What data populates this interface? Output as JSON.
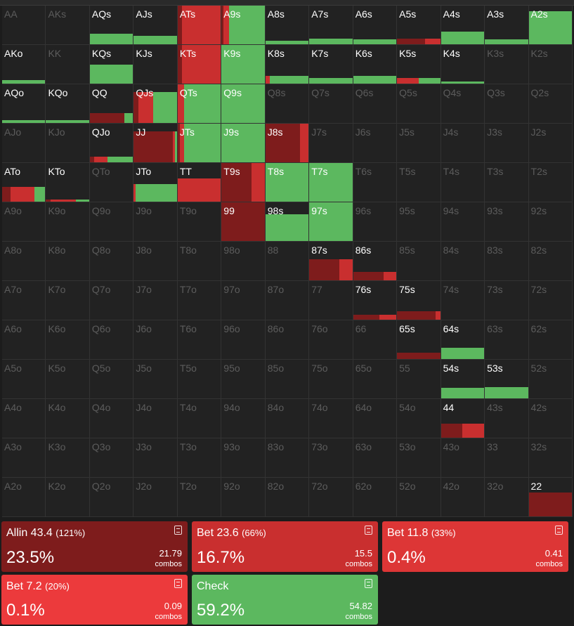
{
  "actions": [
    {
      "name": "Allin 43.4",
      "sizing": "(121%)",
      "percent": "23.5%",
      "combos": "21.79",
      "combos_label": "combos",
      "color": "#7e1c1c"
    },
    {
      "name": "Bet 23.6",
      "sizing": "(66%)",
      "percent": "16.7%",
      "combos": "15.5",
      "combos_label": "combos",
      "color": "#c92f2f"
    },
    {
      "name": "Bet 11.8",
      "sizing": "(33%)",
      "percent": "0.4%",
      "combos": "0.41",
      "combos_label": "combos",
      "color": "#dd3636"
    },
    {
      "name": "Bet 7.2",
      "sizing": "(20%)",
      "percent": "0.1%",
      "combos": "0.09",
      "combos_label": "combos",
      "color": "#ec3a3c"
    },
    {
      "name": "Check",
      "percent": "59.2%",
      "combos": "54.82",
      "combos_label": "combos",
      "color": "#5cb85f"
    }
  ],
  "grid": {
    "rows": [
      [
        {
          "label": "AA"
        },
        {
          "label": "AKs"
        },
        {
          "label": "AQs",
          "active": true,
          "weight": 0.28,
          "mix": [
            0,
            0,
            0,
            0,
            1
          ]
        },
        {
          "label": "AJs",
          "active": true,
          "weight": 0.22,
          "mix": [
            0,
            0,
            0,
            0,
            1
          ]
        },
        {
          "label": "ATs",
          "active": true,
          "weight": 1,
          "mix": [
            0.1,
            0.9,
            0,
            0,
            0
          ]
        },
        {
          "label": "A9s",
          "active": true,
          "weight": 1,
          "mix": [
            0.05,
            0.12,
            0,
            0,
            0.83
          ]
        },
        {
          "label": "A8s",
          "active": true,
          "weight": 0.1,
          "mix": [
            0,
            0,
            0,
            0,
            1
          ]
        },
        {
          "label": "A7s",
          "active": true,
          "weight": 0.14,
          "mix": [
            0,
            0,
            0,
            0,
            1
          ]
        },
        {
          "label": "A6s",
          "active": true,
          "weight": 0.12,
          "mix": [
            0,
            0,
            0,
            0,
            1
          ]
        },
        {
          "label": "A5s",
          "active": true,
          "weight": 0.14,
          "mix": [
            0.65,
            0.35,
            0,
            0,
            0
          ]
        },
        {
          "label": "A4s",
          "active": true,
          "weight": 0.33,
          "mix": [
            0,
            0,
            0,
            0,
            1
          ]
        },
        {
          "label": "A3s",
          "active": true,
          "weight": 0.12,
          "mix": [
            0,
            0,
            0,
            0,
            1
          ]
        },
        {
          "label": "A2s",
          "active": true,
          "weight": 0.85,
          "mix": [
            0,
            0,
            0,
            0,
            1
          ]
        }
      ],
      [
        {
          "label": "AKo",
          "active": true,
          "weight": 0.1,
          "mix": [
            0,
            0,
            0,
            0,
            1
          ]
        },
        {
          "label": "KK"
        },
        {
          "label": "KQs",
          "active": true,
          "weight": 0.5,
          "mix": [
            0,
            0,
            0,
            0,
            1
          ]
        },
        {
          "label": "KJs",
          "active": true,
          "weight": 0,
          "mix": [
            0,
            0,
            0,
            0,
            1
          ]
        },
        {
          "label": "KTs",
          "active": true,
          "weight": 1,
          "mix": [
            0.1,
            0.9,
            0,
            0,
            0
          ]
        },
        {
          "label": "K9s",
          "active": true,
          "weight": 1,
          "mix": [
            0,
            0,
            0,
            0,
            1
          ]
        },
        {
          "label": "K8s",
          "active": true,
          "weight": 0.2,
          "mix": [
            0,
            0.1,
            0,
            0,
            0.9
          ]
        },
        {
          "label": "K7s",
          "active": true,
          "weight": 0.14,
          "mix": [
            0,
            0,
            0,
            0,
            1
          ]
        },
        {
          "label": "K6s",
          "active": true,
          "weight": 0.2,
          "mix": [
            0,
            0,
            0,
            0,
            1
          ]
        },
        {
          "label": "K5s",
          "active": true,
          "weight": 0.14,
          "mix": [
            0,
            0.5,
            0,
            0,
            0.5
          ]
        },
        {
          "label": "K4s",
          "active": true,
          "weight": 0.05,
          "mix": [
            0,
            0,
            0,
            0,
            1
          ]
        },
        {
          "label": "K3s"
        },
        {
          "label": "K2s"
        }
      ],
      [
        {
          "label": "AQo",
          "active": true,
          "weight": 0.08,
          "mix": [
            0,
            0,
            0,
            0,
            1
          ]
        },
        {
          "label": "KQo",
          "active": true,
          "weight": 0.08,
          "mix": [
            0,
            0,
            0,
            0,
            1
          ]
        },
        {
          "label": "QQ",
          "active": true,
          "weight": 0.25,
          "mix": [
            0.8,
            0,
            0,
            0,
            0.2
          ]
        },
        {
          "label": "QJs",
          "active": true,
          "weight": 0.8,
          "mix": [
            0.1,
            0.35,
            0,
            0,
            0.55
          ]
        },
        {
          "label": "QTs",
          "active": true,
          "weight": 1,
          "mix": [
            0,
            0.15,
            0,
            0,
            0.85
          ]
        },
        {
          "label": "Q9s",
          "active": true,
          "weight": 1,
          "mix": [
            0,
            0,
            0,
            0,
            1
          ]
        },
        {
          "label": "Q8s"
        },
        {
          "label": "Q7s"
        },
        {
          "label": "Q6s"
        },
        {
          "label": "Q5s"
        },
        {
          "label": "Q4s"
        },
        {
          "label": "Q3s"
        },
        {
          "label": "Q2s"
        }
      ],
      [
        {
          "label": "AJo"
        },
        {
          "label": "KJo"
        },
        {
          "label": "QJo",
          "active": true,
          "weight": 0.14,
          "mix": [
            0.1,
            0.3,
            0,
            0,
            0.6
          ]
        },
        {
          "label": "JJ",
          "active": true,
          "weight": 0.8,
          "mix": [
            0.9,
            0.05,
            0,
            0,
            0.05
          ]
        },
        {
          "label": "JTs",
          "active": true,
          "weight": 1,
          "mix": [
            0.05,
            0.1,
            0,
            0,
            0.85
          ]
        },
        {
          "label": "J9s",
          "active": true,
          "weight": 1,
          "mix": [
            0,
            0,
            0,
            0,
            1
          ]
        },
        {
          "label": "J8s",
          "active": true,
          "weight": 1,
          "mix": [
            0.8,
            0.2,
            0,
            0,
            0
          ]
        },
        {
          "label": "J7s"
        },
        {
          "label": "J6s"
        },
        {
          "label": "J5s"
        },
        {
          "label": "J4s"
        },
        {
          "label": "J3s"
        },
        {
          "label": "J2s"
        }
      ],
      [
        {
          "label": "ATo",
          "active": true,
          "weight": 0.38,
          "mix": [
            0.2,
            0.55,
            0,
            0,
            0.25
          ]
        },
        {
          "label": "KTo",
          "active": true,
          "weight": 0.06,
          "mix": [
            0.1,
            0.6,
            0,
            0,
            0.3
          ]
        },
        {
          "label": "QTo"
        },
        {
          "label": "JTo",
          "active": true,
          "weight": 0.45,
          "mix": [
            0,
            0.05,
            0,
            0,
            0.95
          ]
        },
        {
          "label": "TT",
          "active": true,
          "weight": 0.6,
          "mix": [
            0,
            1,
            0,
            0,
            0
          ]
        },
        {
          "label": "T9s",
          "active": true,
          "weight": 1,
          "mix": [
            0.7,
            0.3,
            0,
            0,
            0
          ]
        },
        {
          "label": "T8s",
          "active": true,
          "weight": 1,
          "mix": [
            0,
            0,
            0,
            0,
            1
          ]
        },
        {
          "label": "T7s",
          "active": true,
          "weight": 1,
          "mix": [
            0,
            0,
            0,
            0,
            1
          ]
        },
        {
          "label": "T6s"
        },
        {
          "label": "T5s"
        },
        {
          "label": "T4s"
        },
        {
          "label": "T3s"
        },
        {
          "label": "T2s"
        }
      ],
      [
        {
          "label": "A9o"
        },
        {
          "label": "K9o"
        },
        {
          "label": "Q9o"
        },
        {
          "label": "J9o"
        },
        {
          "label": "T9o"
        },
        {
          "label": "99",
          "active": true,
          "weight": 1,
          "mix": [
            1,
            0,
            0,
            0,
            0
          ]
        },
        {
          "label": "98s",
          "active": true,
          "weight": 0.7,
          "mix": [
            0,
            0,
            0,
            0,
            1
          ]
        },
        {
          "label": "97s",
          "active": true,
          "weight": 1,
          "mix": [
            0,
            0,
            0,
            0,
            1
          ]
        },
        {
          "label": "96s"
        },
        {
          "label": "95s"
        },
        {
          "label": "94s"
        },
        {
          "label": "93s"
        },
        {
          "label": "92s"
        }
      ],
      [
        {
          "label": "A8o"
        },
        {
          "label": "K8o"
        },
        {
          "label": "Q8o"
        },
        {
          "label": "J8o"
        },
        {
          "label": "T8o"
        },
        {
          "label": "98o"
        },
        {
          "label": "88"
        },
        {
          "label": "87s",
          "active": true,
          "weight": 0.55,
          "mix": [
            0.7,
            0.3,
            0,
            0,
            0
          ]
        },
        {
          "label": "86s",
          "active": true,
          "weight": 0.22,
          "mix": [
            0.7,
            0.3,
            0,
            0,
            0
          ]
        },
        {
          "label": "85s"
        },
        {
          "label": "84s"
        },
        {
          "label": "83s"
        },
        {
          "label": "82s"
        }
      ],
      [
        {
          "label": "A7o"
        },
        {
          "label": "K7o"
        },
        {
          "label": "Q7o"
        },
        {
          "label": "J7o"
        },
        {
          "label": "T7o"
        },
        {
          "label": "97o"
        },
        {
          "label": "87o"
        },
        {
          "label": "77"
        },
        {
          "label": "76s",
          "active": true,
          "weight": 0.12,
          "mix": [
            0.6,
            0.4,
            0,
            0,
            0
          ]
        },
        {
          "label": "75s",
          "active": true,
          "weight": 0.22,
          "mix": [
            0.9,
            0.1,
            0,
            0,
            0
          ]
        },
        {
          "label": "74s"
        },
        {
          "label": "73s"
        },
        {
          "label": "72s"
        }
      ],
      [
        {
          "label": "A6o"
        },
        {
          "label": "K6o"
        },
        {
          "label": "Q6o"
        },
        {
          "label": "J6o"
        },
        {
          "label": "T6o"
        },
        {
          "label": "96o"
        },
        {
          "label": "86o"
        },
        {
          "label": "76o"
        },
        {
          "label": "66"
        },
        {
          "label": "65s",
          "active": true,
          "weight": 0.16,
          "mix": [
            1,
            0,
            0,
            0,
            0
          ]
        },
        {
          "label": "64s",
          "active": true,
          "weight": 0.3,
          "mix": [
            0,
            0,
            0,
            0,
            1
          ]
        },
        {
          "label": "63s"
        },
        {
          "label": "62s"
        }
      ],
      [
        {
          "label": "A5o"
        },
        {
          "label": "K5o"
        },
        {
          "label": "Q5o"
        },
        {
          "label": "J5o"
        },
        {
          "label": "T5o"
        },
        {
          "label": "95o"
        },
        {
          "label": "85o"
        },
        {
          "label": "75o"
        },
        {
          "label": "65o"
        },
        {
          "label": "55"
        },
        {
          "label": "54s",
          "active": true,
          "weight": 0.28,
          "mix": [
            0,
            0,
            0,
            0,
            1
          ]
        },
        {
          "label": "53s",
          "active": true,
          "weight": 0.3,
          "mix": [
            0,
            0,
            0,
            0,
            1
          ]
        },
        {
          "label": "52s"
        }
      ],
      [
        {
          "label": "A4o"
        },
        {
          "label": "K4o"
        },
        {
          "label": "Q4o"
        },
        {
          "label": "J4o"
        },
        {
          "label": "T4o"
        },
        {
          "label": "94o"
        },
        {
          "label": "84o"
        },
        {
          "label": "74o"
        },
        {
          "label": "64o"
        },
        {
          "label": "54o"
        },
        {
          "label": "44",
          "active": true,
          "weight": 0.36,
          "mix": [
            0.5,
            0.5,
            0,
            0,
            0
          ]
        },
        {
          "label": "43s"
        },
        {
          "label": "42s"
        }
      ],
      [
        {
          "label": "A3o"
        },
        {
          "label": "K3o"
        },
        {
          "label": "Q3o"
        },
        {
          "label": "J3o"
        },
        {
          "label": "T3o"
        },
        {
          "label": "93o"
        },
        {
          "label": "83o"
        },
        {
          "label": "73o"
        },
        {
          "label": "63o"
        },
        {
          "label": "53o"
        },
        {
          "label": "43o"
        },
        {
          "label": "33"
        },
        {
          "label": "32s"
        }
      ],
      [
        {
          "label": "A2o"
        },
        {
          "label": "K2o"
        },
        {
          "label": "Q2o"
        },
        {
          "label": "J2o"
        },
        {
          "label": "T2o"
        },
        {
          "label": "92o"
        },
        {
          "label": "82o"
        },
        {
          "label": "72o"
        },
        {
          "label": "62o"
        },
        {
          "label": "52o"
        },
        {
          "label": "42o"
        },
        {
          "label": "32o"
        },
        {
          "label": "22",
          "active": true,
          "weight": 0.62,
          "mix": [
            1,
            0,
            0,
            0,
            0
          ]
        }
      ]
    ]
  }
}
